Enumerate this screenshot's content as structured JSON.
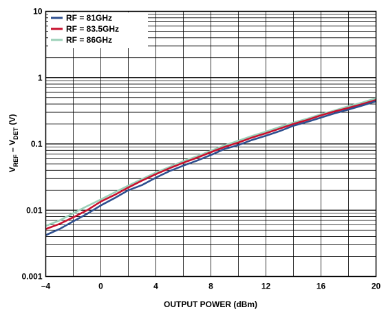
{
  "chart_data": {
    "type": "line",
    "xlabel": "OUTPUT POWER (dBm)",
    "ylabel": {
      "main": "V",
      "sub1": "REF",
      "mid": " – V",
      "sub2": "DET",
      "end": " (V)"
    },
    "xlim": [
      -4,
      20
    ],
    "ylim": [
      0.001,
      10
    ],
    "yscale": "log",
    "grid": true,
    "legend_position": "top-left",
    "x_ticks": [
      -4,
      0,
      4,
      8,
      12,
      16,
      20
    ],
    "x_tick_labels": [
      "–4",
      "0",
      "4",
      "8",
      "12",
      "16",
      "20"
    ],
    "y_ticks": [
      0.001,
      0.01,
      0.1,
      1,
      10
    ],
    "y_tick_labels": [
      "0.001",
      "0.01",
      "0.1",
      "1",
      "10"
    ],
    "series": [
      {
        "name": "RF = 81GHz",
        "color": "#2e4f8f",
        "x": [
          -4,
          -3,
          -2,
          -1,
          0,
          1,
          2,
          3,
          4,
          5,
          6,
          7,
          8,
          9,
          10,
          11,
          12,
          13,
          14,
          15,
          16,
          17,
          18,
          19,
          20
        ],
        "y": [
          0.0042,
          0.0052,
          0.0068,
          0.0088,
          0.0118,
          0.0152,
          0.02,
          0.024,
          0.031,
          0.039,
          0.047,
          0.056,
          0.068,
          0.084,
          0.096,
          0.115,
          0.133,
          0.156,
          0.188,
          0.215,
          0.25,
          0.29,
          0.33,
          0.38,
          0.44
        ]
      },
      {
        "name": "RF = 83.5GHz",
        "color": "#c8102e",
        "x": [
          -4,
          -3,
          -2,
          -1,
          0,
          1,
          2,
          3,
          4,
          5,
          6,
          7,
          8,
          9,
          10,
          11,
          12,
          13,
          14,
          15,
          16,
          17,
          18,
          19,
          20
        ],
        "y": [
          0.0052,
          0.0062,
          0.0078,
          0.01,
          0.0135,
          0.017,
          0.022,
          0.028,
          0.035,
          0.043,
          0.052,
          0.062,
          0.075,
          0.09,
          0.105,
          0.125,
          0.145,
          0.17,
          0.2,
          0.23,
          0.27,
          0.31,
          0.35,
          0.4,
          0.46
        ]
      },
      {
        "name": "RF = 86GHz",
        "color": "#9bd0b8",
        "x": [
          -4,
          -3,
          -2,
          -1,
          0,
          1,
          2,
          3,
          4,
          5,
          6,
          7,
          8,
          9,
          10,
          11,
          12,
          13,
          14,
          15,
          16,
          17,
          18,
          19,
          20
        ],
        "y": [
          0.0058,
          0.007,
          0.009,
          0.0115,
          0.0145,
          0.0185,
          0.0235,
          0.0295,
          0.037,
          0.045,
          0.055,
          0.065,
          0.079,
          0.095,
          0.112,
          0.132,
          0.153,
          0.18,
          0.21,
          0.24,
          0.28,
          0.32,
          0.37,
          0.42,
          0.49
        ]
      }
    ]
  }
}
